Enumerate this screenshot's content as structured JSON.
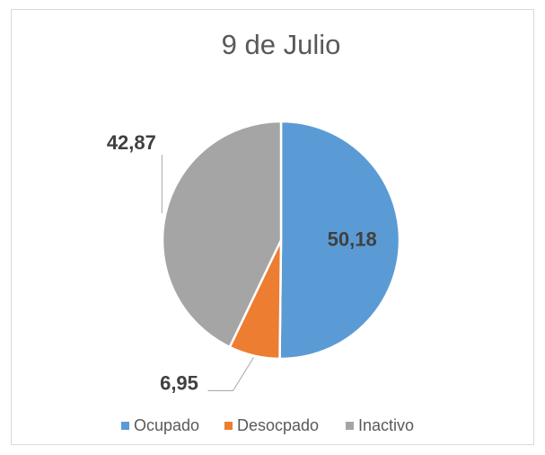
{
  "chart_data": {
    "type": "pie",
    "title": "9 de Julio",
    "categories": [
      "Ocupado",
      "Desocpado",
      "Inactivo"
    ],
    "values": [
      50.18,
      6.95,
      42.87
    ],
    "value_labels": [
      "50,18",
      "6,95",
      "42,87"
    ],
    "colors": [
      "#5b9bd5",
      "#ed7d31",
      "#a5a5a5"
    ]
  }
}
